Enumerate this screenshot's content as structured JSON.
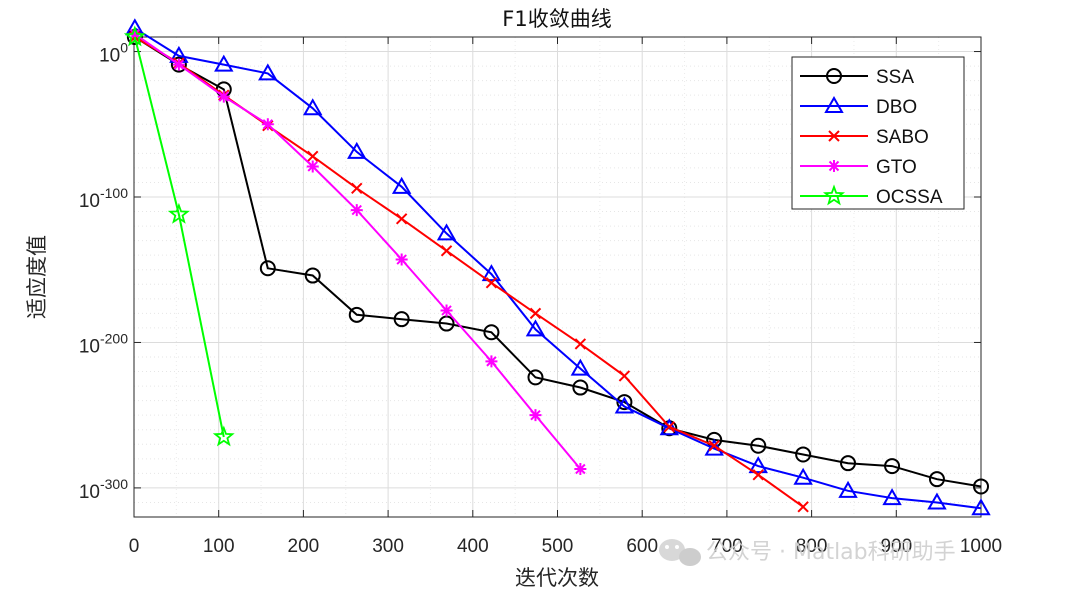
{
  "chart_data": {
    "type": "line",
    "title": "F1收敛曲线",
    "xlabel": "迭代次数",
    "ylabel": "适应度值",
    "yscale": "log",
    "xlim": [
      0,
      1000
    ],
    "ylim_exp": [
      -320,
      10
    ],
    "xticks": [
      0,
      100,
      200,
      300,
      400,
      500,
      600,
      700,
      800,
      900,
      1000
    ],
    "xtick_labels": [
      "0",
      "100",
      "200",
      "300",
      "400",
      "500",
      "600",
      "700",
      "800",
      "900",
      "1000"
    ],
    "yticks_exp": [
      0,
      -100,
      -200,
      -300
    ],
    "ytick_labels": [
      {
        "base": "10",
        "exp": "0"
      },
      {
        "base": "10",
        "exp": "-100"
      },
      {
        "base": "10",
        "exp": "-200"
      },
      {
        "base": "10",
        "exp": "-300"
      }
    ],
    "grid": true,
    "legend_position": "top-right",
    "series": [
      {
        "name": "SSA",
        "color": "#000000",
        "marker": "circle",
        "x": [
          1,
          53,
          106,
          158,
          211,
          263,
          316,
          369,
          422,
          474,
          527,
          579,
          632,
          685,
          737,
          790,
          843,
          895,
          948,
          1000
        ],
        "y_exp": [
          10,
          -9,
          -26,
          -149,
          -154,
          -181,
          -184,
          -187,
          -193,
          -224,
          -231,
          -241,
          -259,
          -267,
          -271,
          -277,
          -283,
          -285,
          -294,
          -299
        ]
      },
      {
        "name": "DBO",
        "color": "#0000FF",
        "marker": "triangle",
        "x": [
          1,
          53,
          106,
          158,
          211,
          263,
          316,
          369,
          422,
          474,
          527,
          579,
          632,
          685,
          737,
          790,
          843,
          895,
          948,
          1000
        ],
        "y_exp": [
          16,
          -3,
          -9,
          -15,
          -39,
          -69,
          -93,
          -125,
          -153,
          -191,
          -218,
          -244,
          -259,
          -273,
          -285,
          -293,
          -302,
          -307,
          -310,
          -314
        ]
      },
      {
        "name": "SABO",
        "color": "#FF0000",
        "marker": "x",
        "x": [
          1,
          53,
          106,
          158,
          211,
          263,
          316,
          369,
          422,
          474,
          527,
          579,
          632,
          685,
          737,
          790
        ],
        "y_exp": [
          10,
          -8,
          -30,
          -51,
          -72,
          -94,
          -115,
          -137,
          -159,
          -180,
          -201,
          -223,
          -258,
          -271,
          -291,
          -313
        ]
      },
      {
        "name": "GTO",
        "color": "#FF00FF",
        "marker": "asterisk",
        "x": [
          1,
          53,
          106,
          158,
          211,
          263,
          316,
          369,
          422,
          474,
          527
        ],
        "y_exp": [
          12,
          -9,
          -31,
          -50,
          -79,
          -109,
          -143,
          -178,
          -213,
          -250,
          -287
        ]
      },
      {
        "name": "OCSSA",
        "color": "#00FF00",
        "marker": "star",
        "x": [
          1,
          53,
          106
        ],
        "y_exp": [
          10,
          -112,
          -265
        ]
      }
    ]
  },
  "watermark": {
    "text": "公众号 · Matlab科研助手"
  }
}
